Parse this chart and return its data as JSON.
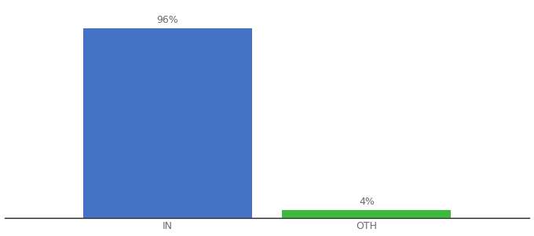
{
  "categories": [
    "IN",
    "OTH"
  ],
  "values": [
    96,
    4
  ],
  "bar_colors": [
    "#4472c4",
    "#3dba3d"
  ],
  "bar_labels": [
    "96%",
    "4%"
  ],
  "background_color": "#ffffff",
  "text_color": "#6b6b6b",
  "label_fontsize": 9,
  "tick_fontsize": 9,
  "ylim": [
    0,
    108
  ],
  "bar_width": 0.28,
  "x_positions": [
    0.27,
    0.6
  ],
  "xlim": [
    0.0,
    0.87
  ]
}
